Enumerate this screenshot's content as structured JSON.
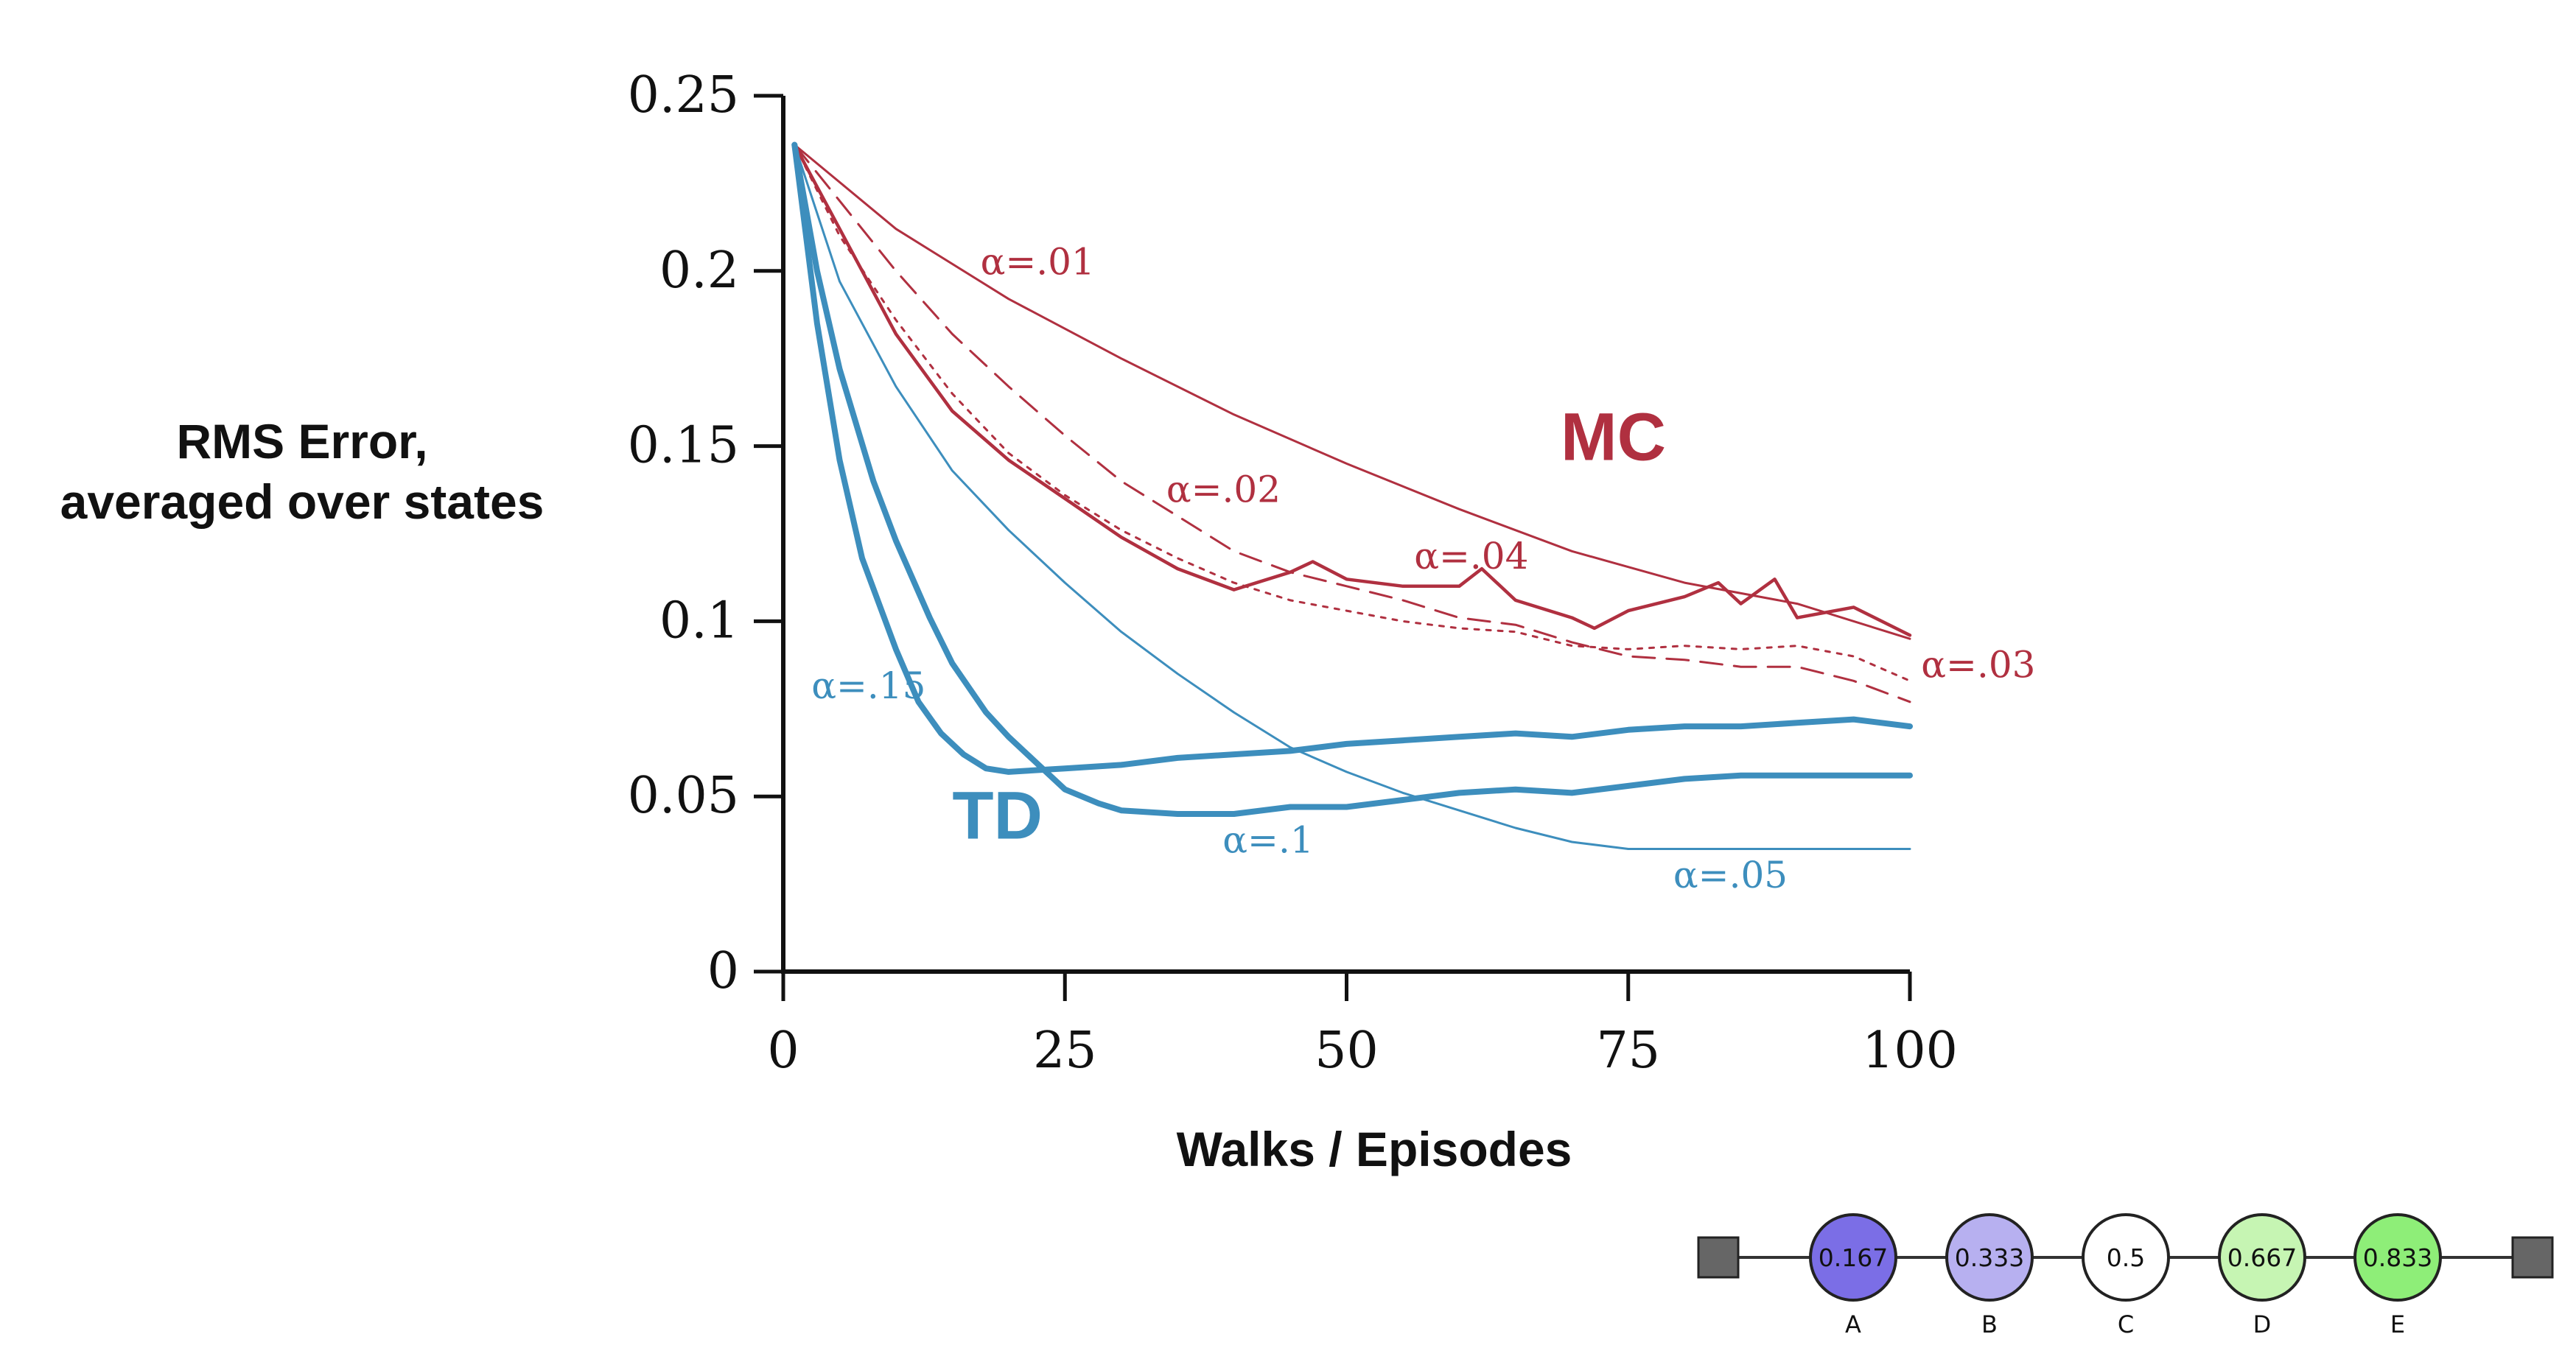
{
  "colors": {
    "mc": "#b03040",
    "td": "#3d8ebd",
    "axis": "#111111"
  },
  "chart_data": {
    "type": "line",
    "ylabel_lines": [
      "RMS Error,",
      "averaged over states"
    ],
    "xlabel": "Walks / Episodes",
    "xlim": [
      0,
      100
    ],
    "ylim": [
      0,
      0.25
    ],
    "x_ticks": [
      {
        "value": 0,
        "label": "0"
      },
      {
        "value": 25,
        "label": "25"
      },
      {
        "value": 50,
        "label": "50"
      },
      {
        "value": 75,
        "label": "75"
      },
      {
        "value": 100,
        "label": "100"
      }
    ],
    "y_ticks": [
      {
        "value": 0,
        "label": "0"
      },
      {
        "value": 0.05,
        "label": "0.05"
      },
      {
        "value": 0.1,
        "label": "0.1"
      },
      {
        "value": 0.15,
        "label": "0.15"
      },
      {
        "value": 0.2,
        "label": "0.2"
      },
      {
        "value": 0.25,
        "label": "0.25"
      }
    ],
    "group_labels": [
      {
        "text": "MC",
        "group": "mc",
        "at": [
          69,
          0.146
        ]
      },
      {
        "text": "TD",
        "group": "td",
        "at": [
          15,
          0.038
        ]
      }
    ],
    "series": [
      {
        "name": "α=.01",
        "group": "mc",
        "style": "solid",
        "weight": "thin",
        "label_at": [
          17.5,
          0.199
        ],
        "points": [
          [
            1,
            0.236
          ],
          [
            10,
            0.212
          ],
          [
            20,
            0.192
          ],
          [
            30,
            0.175
          ],
          [
            40,
            0.159
          ],
          [
            50,
            0.145
          ],
          [
            60,
            0.132
          ],
          [
            70,
            0.12
          ],
          [
            80,
            0.111
          ],
          [
            90,
            0.105
          ],
          [
            100,
            0.095
          ]
        ]
      },
      {
        "name": "α=.02",
        "group": "mc",
        "style": "dashed",
        "weight": "thin",
        "label_at": [
          34,
          0.134
        ],
        "points": [
          [
            1,
            0.236
          ],
          [
            5,
            0.22
          ],
          [
            10,
            0.2
          ],
          [
            15,
            0.182
          ],
          [
            20,
            0.167
          ],
          [
            25,
            0.153
          ],
          [
            30,
            0.14
          ],
          [
            35,
            0.13
          ],
          [
            40,
            0.12
          ],
          [
            45,
            0.114
          ],
          [
            50,
            0.11
          ],
          [
            55,
            0.106
          ],
          [
            60,
            0.101
          ],
          [
            65,
            0.099
          ],
          [
            70,
            0.094
          ],
          [
            75,
            0.09
          ],
          [
            80,
            0.089
          ],
          [
            85,
            0.087
          ],
          [
            90,
            0.087
          ],
          [
            95,
            0.083
          ],
          [
            100,
            0.077
          ]
        ]
      },
      {
        "name": "α=.03",
        "group": "mc",
        "style": "dotted",
        "weight": "thin",
        "label_at": [
          101,
          0.084
        ],
        "points": [
          [
            1,
            0.236
          ],
          [
            5,
            0.21
          ],
          [
            10,
            0.186
          ],
          [
            15,
            0.165
          ],
          [
            20,
            0.148
          ],
          [
            25,
            0.136
          ],
          [
            30,
            0.126
          ],
          [
            35,
            0.118
          ],
          [
            40,
            0.111
          ],
          [
            45,
            0.106
          ],
          [
            50,
            0.103
          ],
          [
            55,
            0.1
          ],
          [
            60,
            0.098
          ],
          [
            65,
            0.097
          ],
          [
            70,
            0.093
          ],
          [
            75,
            0.092
          ],
          [
            80,
            0.093
          ],
          [
            85,
            0.092
          ],
          [
            90,
            0.093
          ],
          [
            95,
            0.09
          ],
          [
            100,
            0.083
          ]
        ]
      },
      {
        "name": "α=.04",
        "group": "mc",
        "style": "solid",
        "weight": "medium",
        "label_at": [
          56,
          0.115
        ],
        "points": [
          [
            1,
            0.236
          ],
          [
            5,
            0.212
          ],
          [
            10,
            0.182
          ],
          [
            15,
            0.16
          ],
          [
            20,
            0.146
          ],
          [
            25,
            0.135
          ],
          [
            30,
            0.124
          ],
          [
            35,
            0.115
          ],
          [
            40,
            0.109
          ],
          [
            45,
            0.114
          ],
          [
            47,
            0.117
          ],
          [
            50,
            0.112
          ],
          [
            55,
            0.11
          ],
          [
            60,
            0.11
          ],
          [
            62,
            0.115
          ],
          [
            65,
            0.106
          ],
          [
            70,
            0.101
          ],
          [
            72,
            0.098
          ],
          [
            75,
            0.103
          ],
          [
            80,
            0.107
          ],
          [
            83,
            0.111
          ],
          [
            85,
            0.105
          ],
          [
            88,
            0.112
          ],
          [
            90,
            0.101
          ],
          [
            95,
            0.104
          ],
          [
            100,
            0.096
          ]
        ]
      },
      {
        "name": "α=.05",
        "group": "td",
        "style": "solid",
        "weight": "thin",
        "label_at": [
          79,
          0.024
        ],
        "points": [
          [
            1,
            0.236
          ],
          [
            5,
            0.197
          ],
          [
            10,
            0.167
          ],
          [
            15,
            0.143
          ],
          [
            20,
            0.126
          ],
          [
            25,
            0.111
          ],
          [
            30,
            0.097
          ],
          [
            35,
            0.085
          ],
          [
            40,
            0.074
          ],
          [
            45,
            0.064
          ],
          [
            50,
            0.057
          ],
          [
            55,
            0.051
          ],
          [
            60,
            0.046
          ],
          [
            65,
            0.041
          ],
          [
            70,
            0.037
          ],
          [
            75,
            0.035
          ],
          [
            80,
            0.035
          ],
          [
            85,
            0.035
          ],
          [
            90,
            0.035
          ],
          [
            100,
            0.035
          ]
        ]
      },
      {
        "name": "α=.1",
        "group": "td",
        "style": "solid",
        "weight": "thick",
        "label_at": [
          39,
          0.034
        ],
        "points": [
          [
            1,
            0.236
          ],
          [
            3,
            0.2
          ],
          [
            5,
            0.172
          ],
          [
            8,
            0.14
          ],
          [
            10,
            0.123
          ],
          [
            13,
            0.101
          ],
          [
            15,
            0.088
          ],
          [
            18,
            0.074
          ],
          [
            20,
            0.067
          ],
          [
            23,
            0.058
          ],
          [
            25,
            0.052
          ],
          [
            28,
            0.048
          ],
          [
            30,
            0.046
          ],
          [
            35,
            0.045
          ],
          [
            40,
            0.045
          ],
          [
            45,
            0.047
          ],
          [
            50,
            0.047
          ],
          [
            55,
            0.049
          ],
          [
            60,
            0.051
          ],
          [
            65,
            0.052
          ],
          [
            70,
            0.051
          ],
          [
            75,
            0.053
          ],
          [
            80,
            0.055
          ],
          [
            85,
            0.056
          ],
          [
            90,
            0.056
          ],
          [
            100,
            0.056
          ]
        ]
      },
      {
        "name": "α=.15",
        "group": "td",
        "style": "solid",
        "weight": "thick",
        "label_at": [
          2.5,
          0.078
        ],
        "points": [
          [
            1,
            0.236
          ],
          [
            3,
            0.185
          ],
          [
            5,
            0.146
          ],
          [
            7,
            0.118
          ],
          [
            10,
            0.092
          ],
          [
            12,
            0.077
          ],
          [
            14,
            0.068
          ],
          [
            16,
            0.062
          ],
          [
            18,
            0.058
          ],
          [
            20,
            0.057
          ],
          [
            25,
            0.058
          ],
          [
            30,
            0.059
          ],
          [
            35,
            0.061
          ],
          [
            40,
            0.062
          ],
          [
            45,
            0.063
          ],
          [
            50,
            0.065
          ],
          [
            55,
            0.066
          ],
          [
            60,
            0.067
          ],
          [
            65,
            0.068
          ],
          [
            70,
            0.067
          ],
          [
            75,
            0.069
          ],
          [
            80,
            0.07
          ],
          [
            85,
            0.07
          ],
          [
            90,
            0.071
          ],
          [
            95,
            0.072
          ],
          [
            100,
            0.07
          ]
        ]
      }
    ]
  },
  "random_walk": {
    "nodes": [
      {
        "letter": "A",
        "value": "0.167",
        "fill": "#7b6ee6"
      },
      {
        "letter": "B",
        "value": "0.333",
        "fill": "#b7b0f0"
      },
      {
        "letter": "C",
        "value": "0.5",
        "fill": "#ffffff"
      },
      {
        "letter": "D",
        "value": "0.667",
        "fill": "#c6f5b3"
      },
      {
        "letter": "E",
        "value": "0.833",
        "fill": "#8eee78"
      }
    ],
    "terminal_fill": "#666666"
  }
}
